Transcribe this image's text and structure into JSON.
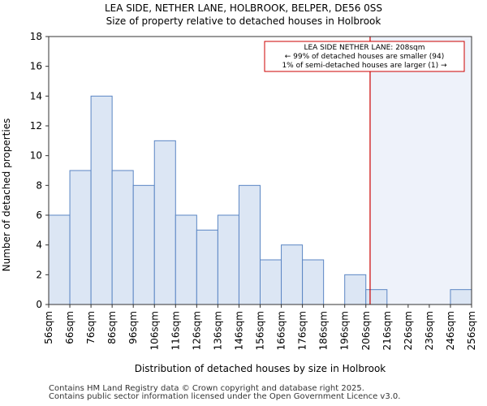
{
  "header": {
    "title": "LEA SIDE, NETHER LANE, HOLBROOK, BELPER, DE56 0SS",
    "subtitle": "Size of property relative to detached houses in Holbrook"
  },
  "chart_data": {
    "type": "bar",
    "title": "LEA SIDE, NETHER LANE, HOLBROOK, BELPER, DE56 0SS",
    "subtitle": "Size of property relative to detached houses in Holbrook",
    "xlabel": "Distribution of detached houses by size in Holbrook",
    "ylabel": "Number of detached properties",
    "bin_edges": [
      56,
      66,
      76,
      86,
      96,
      106,
      116,
      126,
      136,
      146,
      156,
      166,
      176,
      186,
      196,
      206,
      216,
      226,
      236,
      246,
      256
    ],
    "tick_labels": [
      "56sqm",
      "66sqm",
      "76sqm",
      "86sqm",
      "96sqm",
      "106sqm",
      "116sqm",
      "126sqm",
      "136sqm",
      "146sqm",
      "156sqm",
      "166sqm",
      "176sqm",
      "186sqm",
      "196sqm",
      "206sqm",
      "216sqm",
      "226sqm",
      "236sqm",
      "246sqm",
      "256sqm"
    ],
    "values": [
      6,
      9,
      14,
      9,
      8,
      11,
      6,
      5,
      6,
      8,
      3,
      4,
      3,
      0,
      2,
      1,
      0,
      0,
      0,
      1
    ],
    "ylim": [
      0,
      18
    ],
    "yticks": [
      0,
      2,
      4,
      6,
      8,
      10,
      12,
      14,
      16,
      18
    ],
    "grid": false,
    "marker": {
      "value": 208,
      "color": "#cc0000"
    },
    "annotation": {
      "lines": [
        "LEA SIDE NETHER LANE: 208sqm",
        "← 99% of detached houses are smaller (94)",
        "1% of semi-detached houses are larger (1) →"
      ],
      "placement": "top-right"
    },
    "colors": {
      "bar_fill": "#dce6f4",
      "bar_edge": "#5b86c4",
      "shade": "#eef2fa",
      "axis": "#333333"
    }
  },
  "footer": {
    "line1": "Contains HM Land Registry data © Crown copyright and database right 2025.",
    "line2": "Contains public sector information licensed under the Open Government Licence v3.0."
  }
}
